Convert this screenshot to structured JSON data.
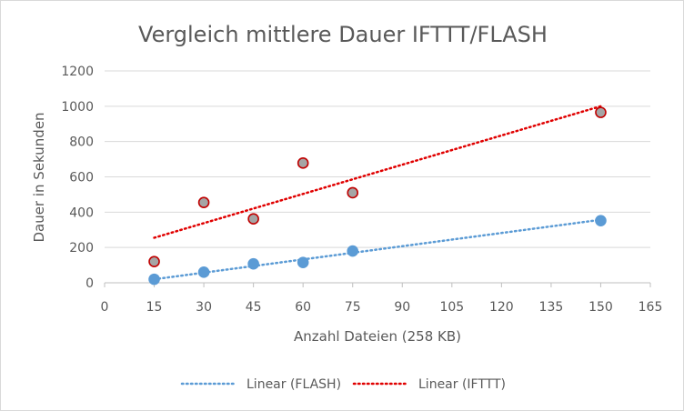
{
  "chart_data": {
    "type": "scatter",
    "title": "Vergleich mittlere Dauer IFTTT/FLASH",
    "xlabel": "Anzahl Dateien (258 KB)",
    "ylabel": "Dauer in Sekunden",
    "xlim": [
      0,
      165
    ],
    "ylim": [
      0,
      1200
    ],
    "xticks": [
      0,
      15,
      30,
      45,
      60,
      75,
      90,
      105,
      120,
      135,
      150,
      165
    ],
    "yticks": [
      0,
      200,
      400,
      600,
      800,
      1000,
      1200
    ],
    "grid": true,
    "legend_position": "bottom",
    "series": [
      {
        "key": "flash",
        "marker_color": "#5b9bd5",
        "marker_edge": "#5b9bd5",
        "points": [
          [
            15,
            20
          ],
          [
            30,
            60
          ],
          [
            45,
            107
          ],
          [
            60,
            115
          ],
          [
            75,
            180
          ],
          [
            150,
            352
          ]
        ],
        "trendline": {
          "name": "Linear (FLASH)",
          "from": [
            15,
            20
          ],
          "to": [
            150,
            357
          ],
          "color": "#5b9bd5"
        }
      },
      {
        "key": "ifttt",
        "marker_color": "#a5a5a5",
        "marker_edge": "#c00000",
        "points": [
          [
            15,
            120
          ],
          [
            30,
            455
          ],
          [
            45,
            362
          ],
          [
            60,
            678
          ],
          [
            75,
            510
          ],
          [
            150,
            965
          ]
        ],
        "trendline": {
          "name": "Linear (IFTTT)",
          "from": [
            15,
            255
          ],
          "to": [
            150,
            1000
          ],
          "color": "#e00000"
        }
      }
    ]
  }
}
